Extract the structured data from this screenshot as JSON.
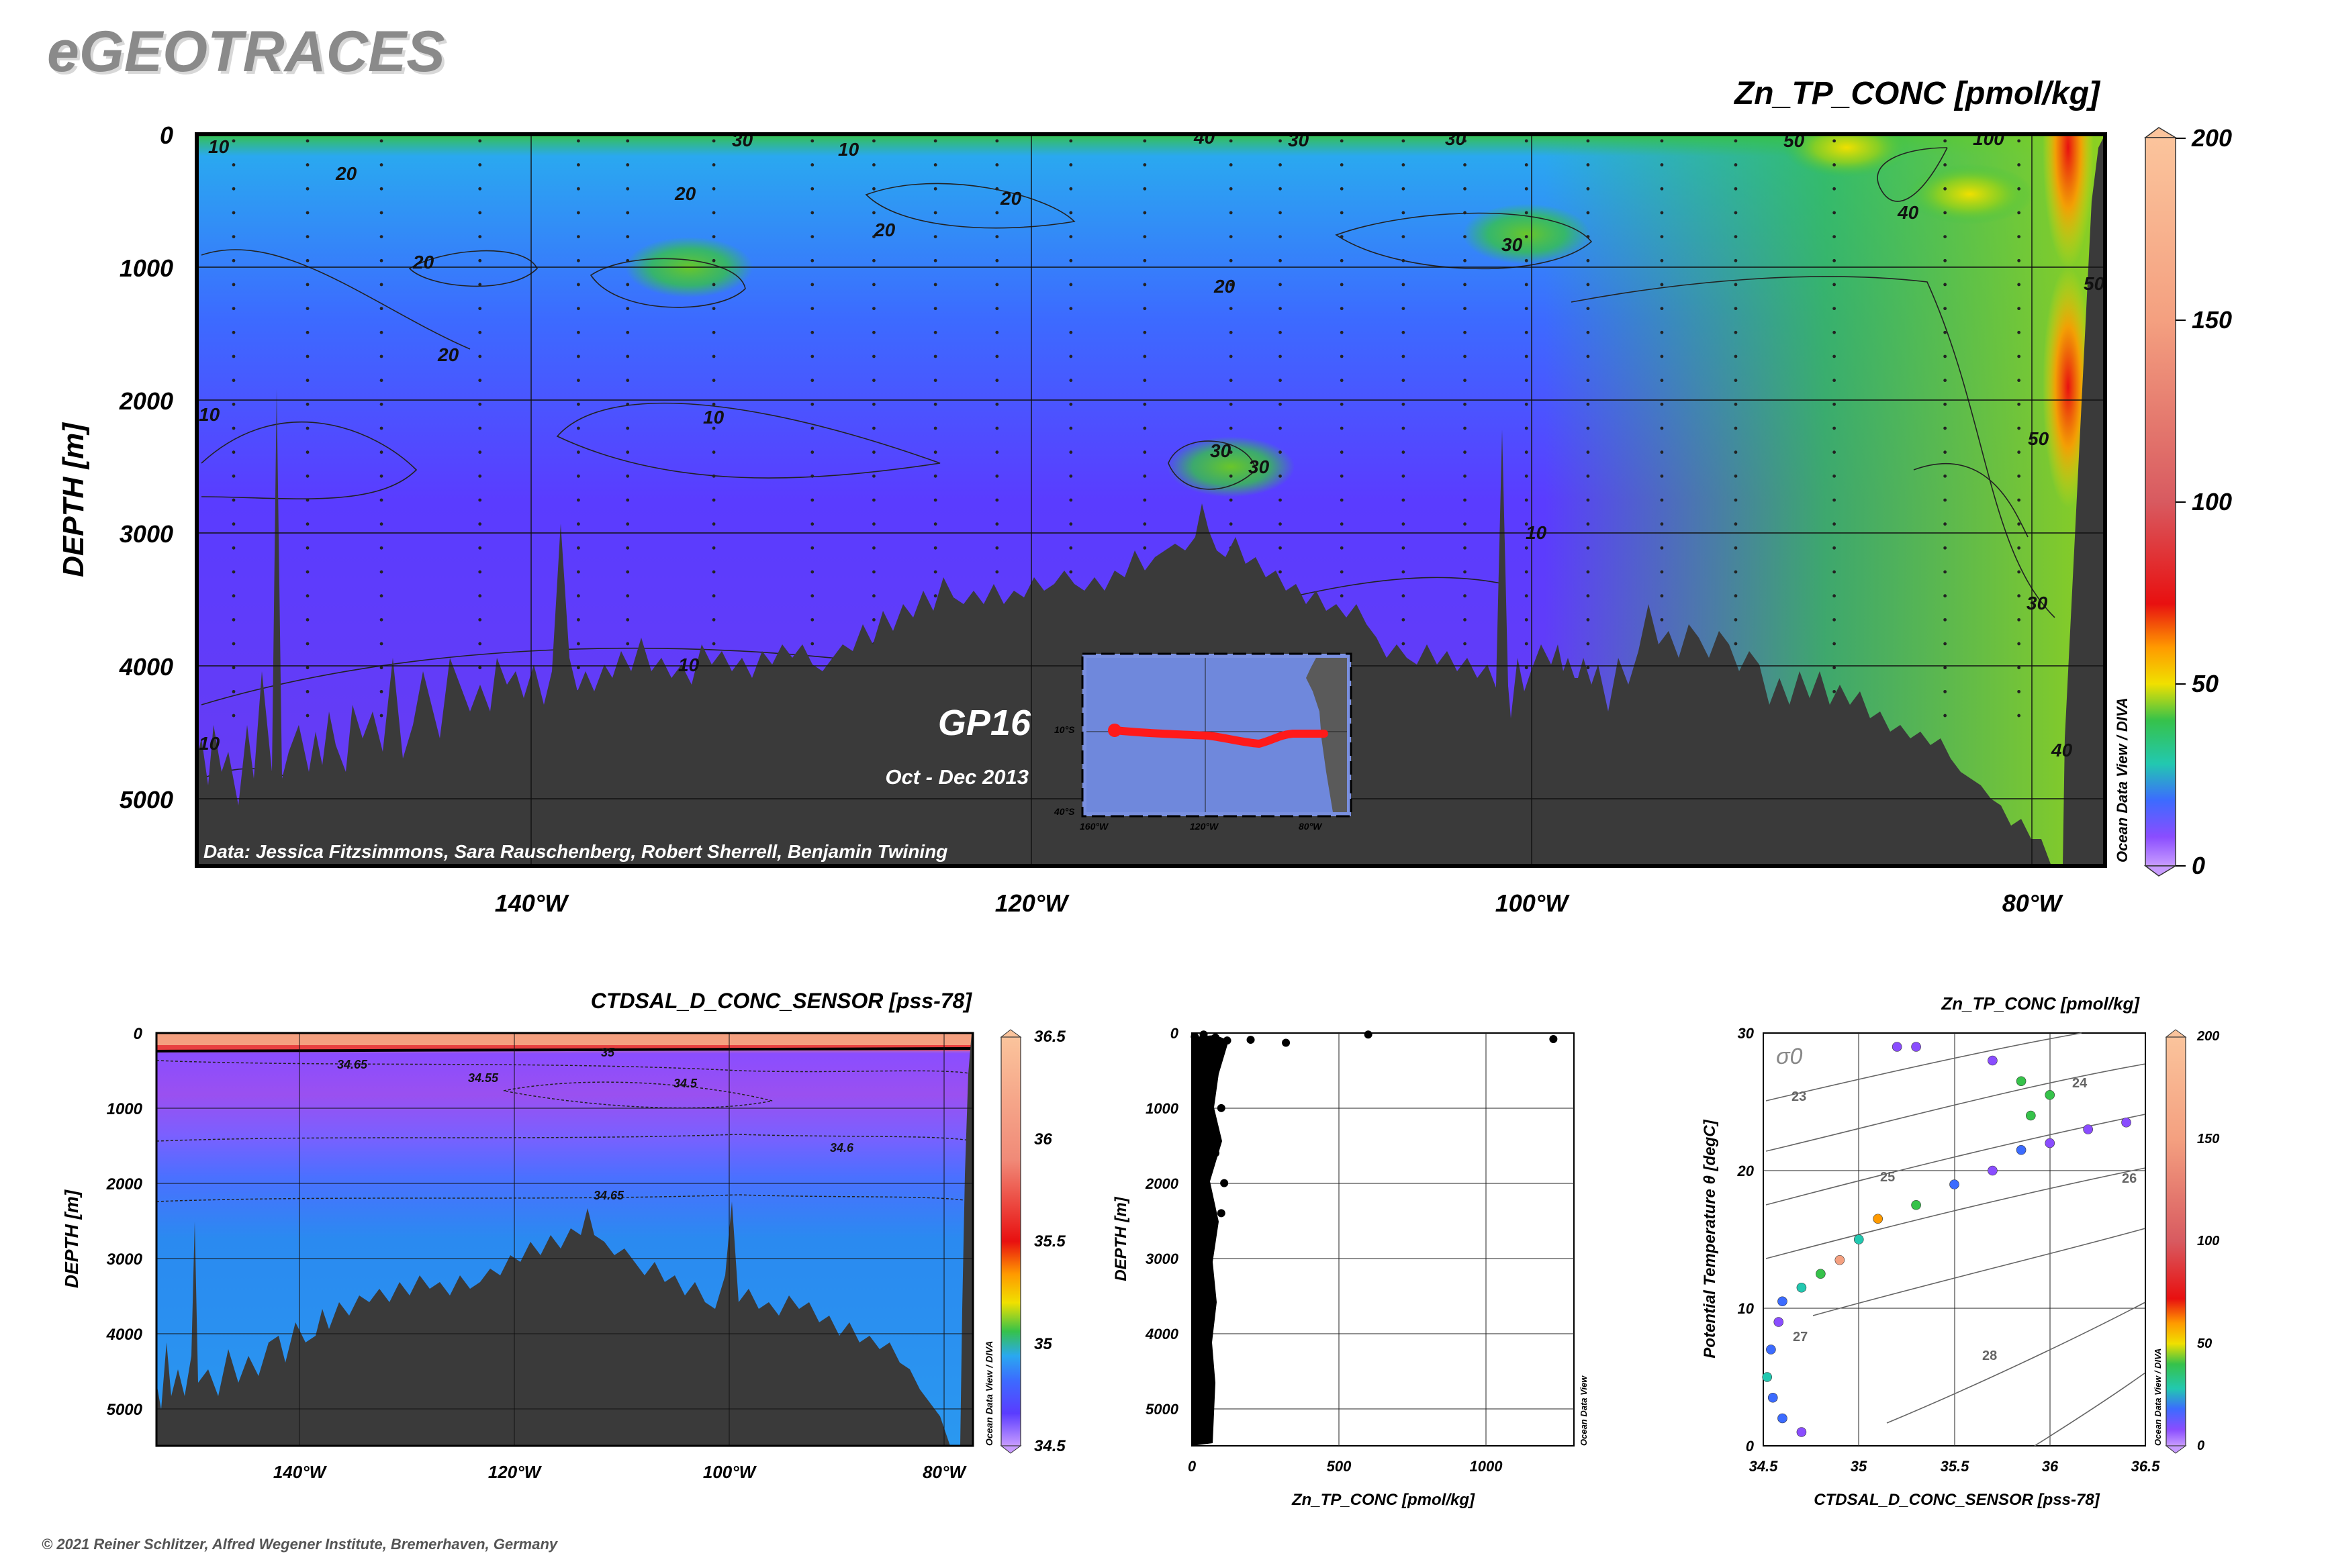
{
  "brand": "eGEOTRACES",
  "copyright": "© 2021 Reiner Schlitzer, Alfred Wegener Institute, Bremerhaven, Germany",
  "odv_credit": "Ocean Data View / DIVA",
  "odv_credit_short": "Ocean Data View",
  "main_section": {
    "title": "Zn_TP_CONC [pmol/kg]",
    "ylabel": "DEPTH [m]",
    "cruise": "GP16",
    "period": "Oct - Dec 2013",
    "data_credit": "Data: Jessica Fitzsimmons, Sara Rauschenberg, Robert Sherrell, Benjamin Twining",
    "x_ticks": [
      "140°W",
      "120°W",
      "100°W",
      "80°W"
    ],
    "y_ticks": [
      "0",
      "1000",
      "2000",
      "3000",
      "4000",
      "5000"
    ],
    "colorbar_ticks": [
      "0",
      "50",
      "100",
      "150",
      "200"
    ],
    "contour_labels": [
      "10",
      "20",
      "30",
      "40",
      "50",
      "100"
    ],
    "inset_map": {
      "lat_ticks": [
        "10°S",
        "40°S"
      ],
      "lon_ticks": [
        "160°W",
        "120°W",
        "80°W"
      ]
    }
  },
  "salinity_section": {
    "title": "CTDSAL_D_CONC_SENSOR [pss-78]",
    "ylabel": "DEPTH [m]",
    "x_ticks": [
      "140°W",
      "120°W",
      "100°W",
      "80°W"
    ],
    "y_ticks": [
      "0",
      "1000",
      "2000",
      "3000",
      "4000",
      "5000"
    ],
    "colorbar_ticks": [
      "34.5",
      "35",
      "35.5",
      "36",
      "36.5"
    ],
    "contour_labels": [
      "34.65",
      "34.55",
      "34.5",
      "34.6",
      "34.65",
      "35"
    ]
  },
  "profile_plot": {
    "xlabel": "Zn_TP_CONC [pmol/kg]",
    "ylabel": "DEPTH [m]",
    "x_ticks": [
      "0",
      "500",
      "1000"
    ],
    "y_ticks": [
      "0",
      "1000",
      "2000",
      "3000",
      "4000",
      "5000"
    ]
  },
  "ts_plot": {
    "title": "Zn_TP_CONC [pmol/kg]",
    "xlabel": "CTDSAL_D_CONC_SENSOR [pss-78]",
    "ylabel": "Potential Temperature θ [degC]",
    "sigma_label": "σ0",
    "x_ticks": [
      "34.5",
      "35",
      "35.5",
      "36",
      "36.5"
    ],
    "y_ticks": [
      "0",
      "10",
      "20",
      "30"
    ],
    "isopycnal_labels": [
      "23",
      "24",
      "25",
      "26",
      "27",
      "28"
    ],
    "colorbar_ticks": [
      "0",
      "50",
      "100",
      "150",
      "200"
    ]
  },
  "colors": {
    "seafloor": "#3a3a3a",
    "track": "#ff1a1a",
    "palette": [
      "#c89cff",
      "#8a4dff",
      "#5a3cff",
      "#3c6bff",
      "#2aa8f0",
      "#22c8b0",
      "#36c24a",
      "#8ed020",
      "#f0e000",
      "#ff9a00",
      "#e81010",
      "#d85a60",
      "#f4a080",
      "#fbc49c"
    ]
  },
  "chart_data": [
    {
      "type": "heatmap",
      "title": "Zn_TP_CONC [pmol/kg]",
      "ylabel": "DEPTH [m]",
      "xlim": [
        -155,
        -77.5
      ],
      "ylim": [
        5500,
        0
      ],
      "color_range": [
        0,
        200
      ],
      "field_blobs": [
        {
          "lon": -135,
          "depth": 1000,
          "value": 30
        },
        {
          "lon": -113,
          "depth": 2500,
          "value": 30
        },
        {
          "lon": -101,
          "depth": 750,
          "value": 30
        },
        {
          "lon": -88,
          "depth": 100,
          "value": 40
        },
        {
          "lon": -83,
          "depth": 450,
          "value": 40
        },
        {
          "lon": -79,
          "depth": 1900,
          "value": 60
        },
        {
          "lon": -79,
          "depth": 100,
          "value": 100
        }
      ],
      "station_longitudes": [
        -153.5,
        -150.5,
        -147.5,
        -143.5,
        -139.5,
        -137.5,
        -134,
        -130,
        -127.5,
        -125,
        -122.5,
        -119.5,
        -116.5,
        -113,
        -111,
        -108.5,
        -106,
        -103.5,
        -101,
        -98.5,
        -95.5,
        -92.5,
        -88.5,
        -84,
        -81
      ]
    },
    {
      "type": "heatmap",
      "title": "CTDSAL_D_CONC_SENSOR [pss-78]",
      "ylabel": "DEPTH [m]",
      "xlim": [
        -155,
        -77.5
      ],
      "ylim": [
        5500,
        0
      ],
      "color_range": [
        34.5,
        36.5
      ]
    },
    {
      "type": "scatter",
      "xlabel": "Zn_TP_CONC [pmol/kg]",
      "ylabel": "DEPTH [m]",
      "xlim": [
        0,
        1300
      ],
      "ylim": [
        5500,
        0
      ],
      "points": [
        [
          10,
          50
        ],
        [
          40,
          20
        ],
        [
          80,
          60
        ],
        [
          120,
          100
        ],
        [
          200,
          90
        ],
        [
          320,
          130
        ],
        [
          600,
          20
        ],
        [
          1230,
          80
        ],
        [
          20,
          300
        ],
        [
          60,
          500
        ],
        [
          30,
          700
        ],
        [
          100,
          1000
        ],
        [
          20,
          1100
        ],
        [
          50,
          1300
        ],
        [
          80,
          1600
        ],
        [
          30,
          1800
        ],
        [
          110,
          2000
        ],
        [
          40,
          2200
        ],
        [
          100,
          2400
        ],
        [
          20,
          2600
        ],
        [
          40,
          2800
        ],
        [
          30,
          3000
        ],
        [
          20,
          3300
        ],
        [
          40,
          3600
        ],
        [
          20,
          3900
        ],
        [
          30,
          4200
        ],
        [
          20,
          4500
        ],
        [
          30,
          4800
        ],
        [
          40,
          5100
        ],
        [
          20,
          5400
        ]
      ]
    },
    {
      "type": "scatter",
      "xlabel": "CTDSAL_D_CONC_SENSOR [pss-78]",
      "ylabel": "Potential Temperature θ [degC]",
      "xlim": [
        34.5,
        36.5
      ],
      "ylim": [
        0,
        30
      ],
      "color_range": [
        0,
        200
      ],
      "points": [
        {
          "s": 34.7,
          "t": 1.0,
          "c": 15
        },
        {
          "s": 34.6,
          "t": 2.0,
          "c": 20
        },
        {
          "s": 34.55,
          "t": 3.5,
          "c": 25
        },
        {
          "s": 34.52,
          "t": 5.0,
          "c": 30
        },
        {
          "s": 34.54,
          "t": 7.0,
          "c": 20
        },
        {
          "s": 34.58,
          "t": 9.0,
          "c": 15
        },
        {
          "s": 34.6,
          "t": 10.5,
          "c": 20
        },
        {
          "s": 34.7,
          "t": 11.5,
          "c": 35
        },
        {
          "s": 34.8,
          "t": 12.5,
          "c": 45
        },
        {
          "s": 34.9,
          "t": 13.5,
          "c": 150
        },
        {
          "s": 35.0,
          "t": 15.0,
          "c": 30
        },
        {
          "s": 35.1,
          "t": 16.5,
          "c": 60
        },
        {
          "s": 35.3,
          "t": 17.5,
          "c": 40
        },
        {
          "s": 35.5,
          "t": 19.0,
          "c": 25
        },
        {
          "s": 35.7,
          "t": 20.0,
          "c": 15
        },
        {
          "s": 35.85,
          "t": 21.5,
          "c": 20
        },
        {
          "s": 36.0,
          "t": 22.0,
          "c": 10
        },
        {
          "s": 36.2,
          "t": 23.0,
          "c": 15
        },
        {
          "s": 36.4,
          "t": 23.5,
          "c": 8
        },
        {
          "s": 35.9,
          "t": 24.0,
          "c": 40
        },
        {
          "s": 36.0,
          "t": 25.5,
          "c": 45
        },
        {
          "s": 35.85,
          "t": 26.5,
          "c": 40
        },
        {
          "s": 35.7,
          "t": 28.0,
          "c": 15
        },
        {
          "s": 35.3,
          "t": 29.0,
          "c": 10
        },
        {
          "s": 35.2,
          "t": 29.0,
          "c": 12
        }
      ]
    }
  ]
}
